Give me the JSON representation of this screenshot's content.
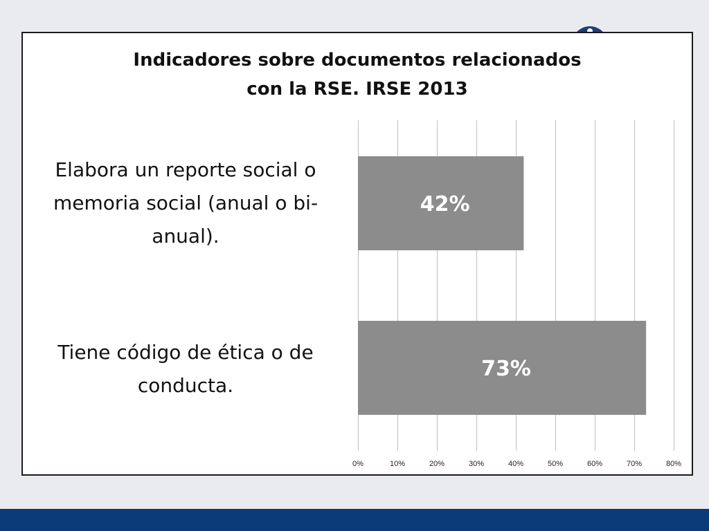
{
  "chart_data": {
    "type": "bar",
    "orientation": "horizontal",
    "title": [
      "Indicadores sobre documentos relacionados",
      "con la RSE. IRSE 2013"
    ],
    "categories": [
      "Elabora un reporte social o memoria social (anual o bi-anual).",
      "Tiene código de ética o de conducta."
    ],
    "category_lines": [
      [
        "Elabora un reporte social o",
        "memoria social (anual o bi-",
        "anual)."
      ],
      [
        "Tiene código de ética o de",
        "conducta."
      ]
    ],
    "values": [
      42,
      73
    ],
    "data_labels": [
      "42%",
      "73%"
    ],
    "xlim": [
      0,
      80
    ],
    "ticks": [
      0,
      10,
      20,
      30,
      40,
      50,
      60,
      70,
      80
    ],
    "tick_labels": [
      "0%",
      "10%",
      "20%",
      "30%",
      "40%",
      "50%",
      "60%",
      "70%",
      "80%"
    ],
    "grid": true,
    "legend": "none",
    "colors": {
      "bar": "#8c8c8c",
      "grid": "#bfbfbf",
      "data_label": "#ffffff"
    }
  },
  "theme": {
    "background": "#e9ebee",
    "footer_bar": "#0b3a78",
    "logo": "#1f3f73"
  }
}
